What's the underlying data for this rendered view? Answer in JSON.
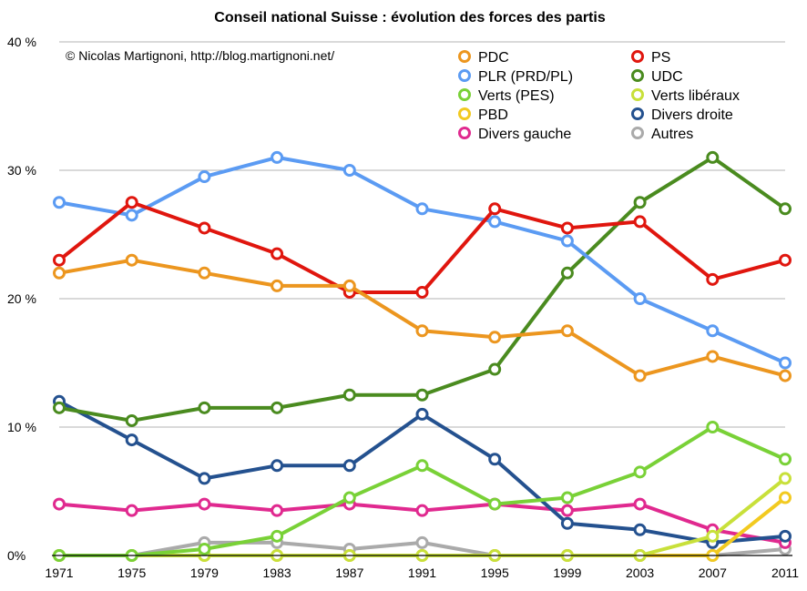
{
  "chart_data": {
    "type": "line",
    "title": "Conseil national Suisse : évolution des forces des partis",
    "annotation": "© Nicolas Martignoni, http://blog.martignoni.net/",
    "x": [
      "1971",
      "1975",
      "1979",
      "1983",
      "1987",
      "1991",
      "1995",
      "1999",
      "2003",
      "2007",
      "2011"
    ],
    "ylim": [
      0,
      40
    ],
    "yticks": [
      0,
      10,
      20,
      30,
      40
    ],
    "ytick_labels": [
      "0%",
      "10 %",
      "20 %",
      "30 %",
      "40 %"
    ],
    "grid": true,
    "legend_position": "top-right",
    "series": [
      {
        "name": "PDC",
        "color": "#ec961f",
        "values": [
          22,
          23,
          22,
          21,
          21,
          17.5,
          17,
          17.5,
          14,
          15.5,
          14
        ]
      },
      {
        "name": "PS",
        "color": "#e0160e",
        "values": [
          23,
          27.5,
          25.5,
          23.5,
          20.5,
          20.5,
          27,
          25.5,
          26,
          21.5,
          23
        ]
      },
      {
        "name": "PLR (PRD/PL)",
        "color": "#5b9bf3",
        "values": [
          27.5,
          26.5,
          29.5,
          31,
          30,
          27,
          26,
          24.5,
          20,
          17.5,
          15
        ]
      },
      {
        "name": "UDC",
        "color": "#4a8b1f",
        "values": [
          11.5,
          10.5,
          11.5,
          11.5,
          12.5,
          12.5,
          14.5,
          22,
          27.5,
          31,
          27
        ]
      },
      {
        "name": "Verts (PES)",
        "color": "#79d137",
        "values": [
          0,
          0,
          0.5,
          1.5,
          4.5,
          7,
          4,
          4.5,
          6.5,
          10,
          7.5
        ]
      },
      {
        "name": "Verts libéraux",
        "color": "#c8e03a",
        "values": [
          0,
          0,
          0,
          0,
          0,
          0,
          0,
          0,
          0,
          1.5,
          6
        ]
      },
      {
        "name": "PBD",
        "color": "#f2ca20",
        "values": [
          0,
          0,
          0,
          0,
          0,
          0,
          0,
          0,
          0,
          0,
          4.5
        ]
      },
      {
        "name": "Divers droite",
        "color": "#24518f",
        "values": [
          12,
          9,
          6,
          7,
          7,
          11,
          7.5,
          2.5,
          2,
          1,
          1.5
        ]
      },
      {
        "name": "Divers gauche",
        "color": "#e0298f",
        "values": [
          4,
          3.5,
          4,
          3.5,
          4,
          3.5,
          4,
          3.5,
          4,
          2,
          1
        ]
      },
      {
        "name": "Autres",
        "color": "#aaaaaa",
        "values": [
          0,
          0,
          1,
          1,
          0.5,
          1,
          0,
          0,
          0,
          0,
          0.5
        ]
      }
    ]
  }
}
